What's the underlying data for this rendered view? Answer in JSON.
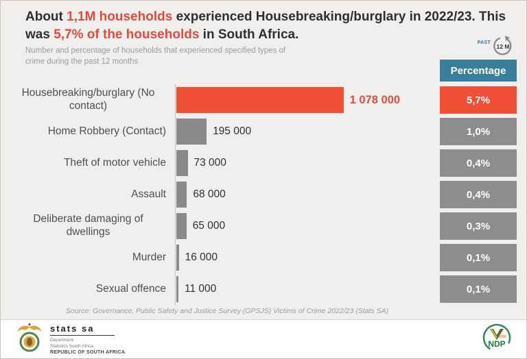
{
  "header": {
    "title_1": "About ",
    "title_em1": "1,1M households",
    "title_2": " experienced Housebreaking/burglary in 2022/23. This was ",
    "title_em2": "5,7% of the households",
    "title_3": " in South Africa.",
    "subtitle": "Number and percentage of households that experienced specified types of crime during the past 12 months",
    "past_badge": {
      "label": "PAST",
      "circle_text": "12 M"
    }
  },
  "chart_data": {
    "type": "bar",
    "orientation": "horizontal",
    "title": "Number and percentage of households that experienced specified types of crime during the past 12 months",
    "column_header": "Percentage",
    "categories": [
      "Housebreaking/burglary (No contact)",
      "Home Robbery (Contact)",
      "Theft of motor vehicle",
      "Assault",
      "Deliberate damaging of dwellings",
      "Murder",
      "Sexual offence"
    ],
    "values": [
      1078000,
      195000,
      73000,
      68000,
      65000,
      16000,
      11000
    ],
    "value_labels": [
      "1 078 000",
      "195 000",
      "73 000",
      "68 000",
      "65 000",
      "16 000",
      "11 000"
    ],
    "percentages": [
      "5,7%",
      "1,0%",
      "0,4%",
      "0,4%",
      "0,3%",
      "0,1%",
      "0,1%"
    ],
    "highlight_index": 0,
    "legend_position": "none",
    "grid": false,
    "colors": {
      "highlight_bar": "#ef4f35",
      "bar_gray": "#8b8989",
      "pct_box_gray": "#8d8d8d",
      "pct_header_teal": "#3a7f99",
      "title_accent_red": "#e04b3c",
      "background": "#f1efed"
    }
  },
  "source": "Source: Governance, Public Safety and Justice Survey (GPSJS) Victims of Crime 2022/23 (Stats SA)",
  "footer": {
    "statssa": {
      "name": "stats sa",
      "dept_line1": "Department:",
      "dept_line2": "Statistics South Africa",
      "republic": "REPUBLIC OF SOUTH AFRICA"
    },
    "ndp": {
      "name": "NDP",
      "year": "2030"
    }
  }
}
